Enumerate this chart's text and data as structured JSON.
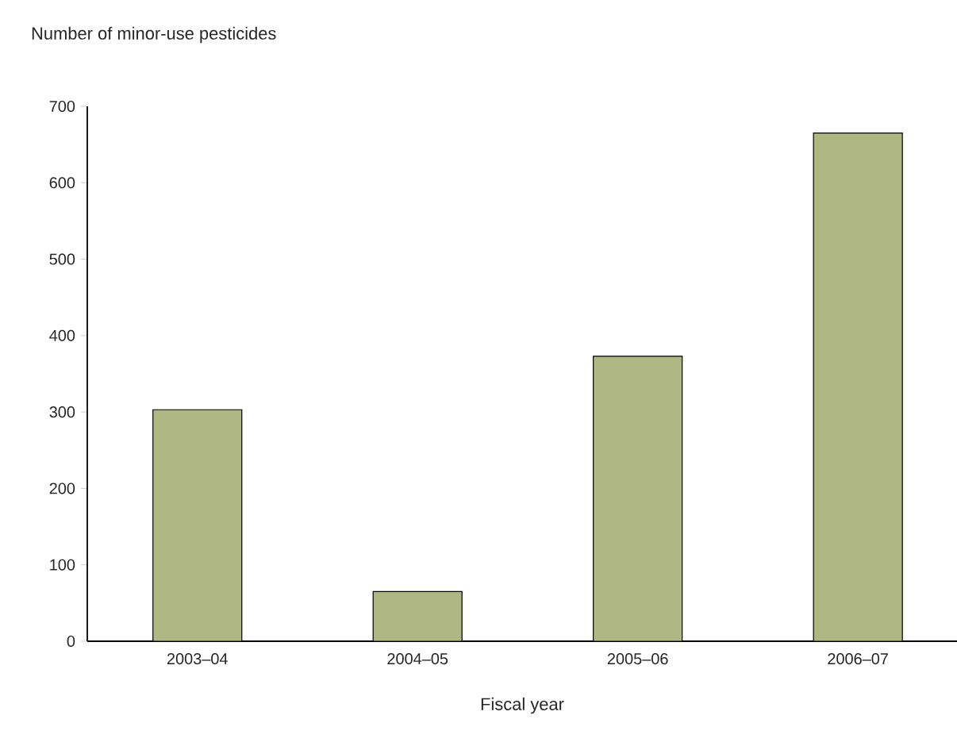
{
  "chart_data": {
    "type": "bar",
    "ylabel": "Number of minor-use pesticides",
    "xlabel": "Fiscal year",
    "categories": [
      "2003–04",
      "2004–05",
      "2005–06",
      "2006–07"
    ],
    "values": [
      303,
      65,
      373,
      665
    ],
    "color": "#afb882",
    "ylim": [
      0,
      700
    ],
    "yticks": [
      0,
      100,
      200,
      300,
      400,
      500,
      600,
      700
    ]
  }
}
